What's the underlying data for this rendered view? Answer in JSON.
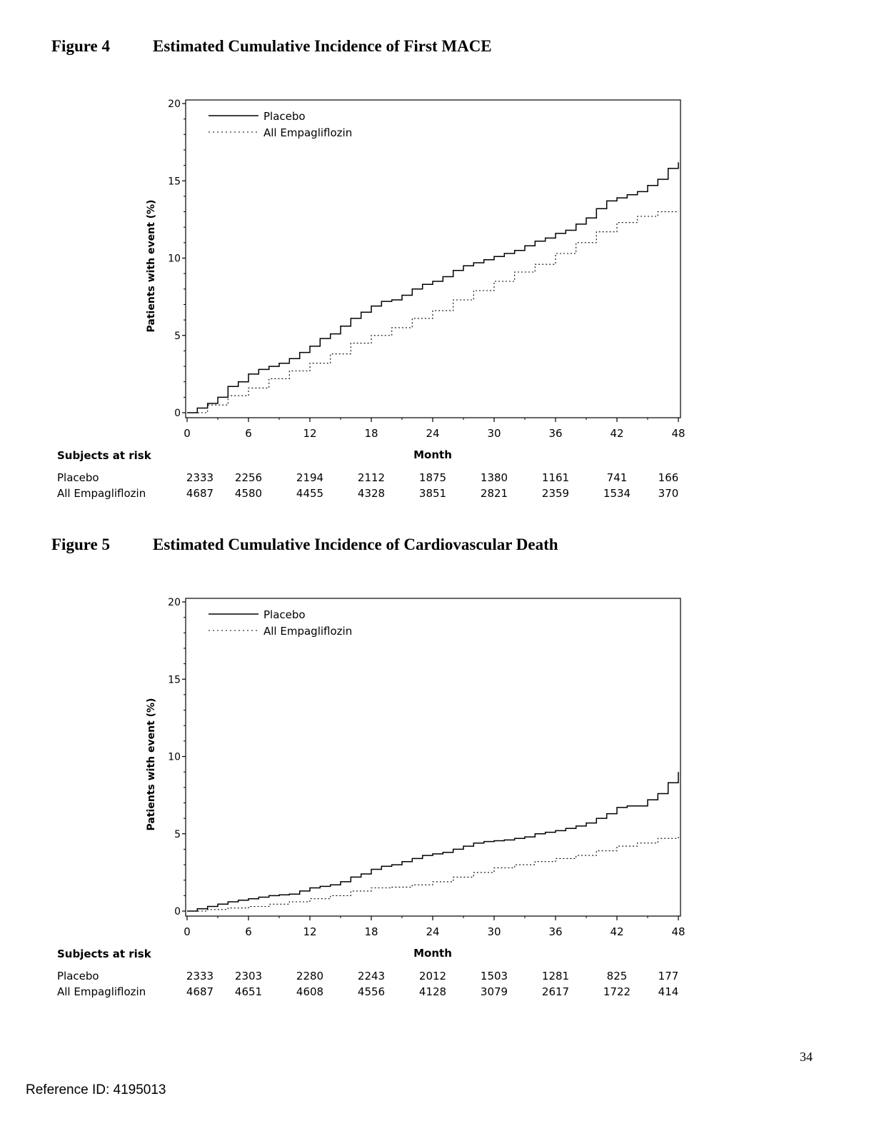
{
  "figures": [
    {
      "label": "Figure 4",
      "title": "Estimated Cumulative Incidence of First MACE"
    },
    {
      "label": "Figure 5",
      "title": "Estimated Cumulative Incidence of Cardiovascular Death"
    }
  ],
  "chart_data": [
    {
      "type": "line",
      "title": "Estimated Cumulative Incidence of First MACE",
      "xlabel": "Month",
      "ylabel": "Patients with event (%)",
      "xlim": [
        0,
        48
      ],
      "ylim": [
        0,
        20
      ],
      "xticks": [
        0,
        6,
        12,
        18,
        24,
        30,
        36,
        42,
        48
      ],
      "yticks": [
        0,
        5,
        10,
        15,
        20
      ],
      "grid": false,
      "legend": "top-left",
      "series": [
        {
          "name": "Placebo",
          "style": "solid",
          "step": true,
          "x": [
            0,
            1,
            2,
            3,
            4,
            5,
            6,
            7,
            8,
            9,
            10,
            11,
            12,
            13,
            14,
            15,
            16,
            17,
            18,
            19,
            20,
            21,
            22,
            23,
            24,
            25,
            26,
            27,
            28,
            29,
            30,
            31,
            32,
            33,
            34,
            35,
            36,
            37,
            38,
            39,
            40,
            41,
            42,
            43,
            44,
            45,
            46,
            47,
            48
          ],
          "y": [
            0,
            0.3,
            0.6,
            1.0,
            1.7,
            2.0,
            2.5,
            2.8,
            3.0,
            3.2,
            3.5,
            3.9,
            4.3,
            4.8,
            5.1,
            5.6,
            6.1,
            6.5,
            6.9,
            7.2,
            7.3,
            7.6,
            8.0,
            8.3,
            8.5,
            8.8,
            9.2,
            9.5,
            9.7,
            9.9,
            10.1,
            10.3,
            10.5,
            10.8,
            11.1,
            11.3,
            11.6,
            11.8,
            12.2,
            12.6,
            13.2,
            13.7,
            13.9,
            14.1,
            14.3,
            14.7,
            15.1,
            15.8,
            16.2
          ]
        },
        {
          "name": "All Empagliflozin",
          "style": "dotted",
          "step": true,
          "x": [
            0,
            2,
            4,
            6,
            8,
            10,
            12,
            14,
            16,
            18,
            20,
            22,
            24,
            26,
            28,
            30,
            32,
            34,
            36,
            38,
            40,
            42,
            44,
            46,
            48
          ],
          "y": [
            0,
            0.5,
            1.1,
            1.6,
            2.2,
            2.7,
            3.2,
            3.8,
            4.5,
            5.0,
            5.5,
            6.1,
            6.6,
            7.3,
            7.9,
            8.5,
            9.1,
            9.6,
            10.3,
            11.0,
            11.7,
            12.3,
            12.7,
            13.0,
            13.0
          ]
        }
      ],
      "at_risk": {
        "header": "Subjects at risk",
        "months": [
          0,
          6,
          12,
          18,
          24,
          30,
          36,
          42,
          48
        ],
        "rows": [
          {
            "label": "Placebo",
            "values": [
              "2333",
              "2256",
              "2194",
              "2112",
              "1875",
              "1380",
              "1161",
              "741",
              "166"
            ]
          },
          {
            "label": "All Empagliflozin",
            "values": [
              "4687",
              "4580",
              "4455",
              "4328",
              "3851",
              "2821",
              "2359",
              "1534",
              "370"
            ]
          }
        ]
      }
    },
    {
      "type": "line",
      "title": "Estimated Cumulative Incidence of Cardiovascular Death",
      "xlabel": "Month",
      "ylabel": "Patients with event (%)",
      "xlim": [
        0,
        48
      ],
      "ylim": [
        0,
        20
      ],
      "xticks": [
        0,
        6,
        12,
        18,
        24,
        30,
        36,
        42,
        48
      ],
      "yticks": [
        0,
        5,
        10,
        15,
        20
      ],
      "grid": false,
      "legend": "top-left",
      "series": [
        {
          "name": "Placebo",
          "style": "solid",
          "step": true,
          "x": [
            0,
            1,
            2,
            3,
            4,
            5,
            6,
            7,
            8,
            9,
            10,
            11,
            12,
            13,
            14,
            15,
            16,
            17,
            18,
            19,
            20,
            21,
            22,
            23,
            24,
            25,
            26,
            27,
            28,
            29,
            30,
            31,
            32,
            33,
            34,
            35,
            36,
            37,
            38,
            39,
            40,
            41,
            42,
            43,
            44,
            45,
            46,
            47,
            48
          ],
          "y": [
            0,
            0.15,
            0.3,
            0.45,
            0.6,
            0.7,
            0.8,
            0.9,
            1.0,
            1.05,
            1.1,
            1.3,
            1.5,
            1.6,
            1.7,
            1.9,
            2.2,
            2.4,
            2.7,
            2.9,
            3.0,
            3.2,
            3.4,
            3.6,
            3.7,
            3.8,
            4.0,
            4.2,
            4.4,
            4.5,
            4.55,
            4.6,
            4.7,
            4.8,
            5.0,
            5.1,
            5.2,
            5.35,
            5.5,
            5.7,
            6.0,
            6.3,
            6.7,
            6.8,
            6.8,
            7.2,
            7.6,
            8.3,
            9.0
          ]
        },
        {
          "name": "All Empagliflozin",
          "style": "dotted",
          "step": true,
          "x": [
            0,
            2,
            4,
            6,
            8,
            10,
            12,
            14,
            16,
            18,
            20,
            22,
            24,
            26,
            28,
            30,
            32,
            34,
            36,
            38,
            40,
            42,
            44,
            46,
            48
          ],
          "y": [
            0,
            0.1,
            0.2,
            0.3,
            0.45,
            0.6,
            0.8,
            1.0,
            1.3,
            1.5,
            1.55,
            1.7,
            1.9,
            2.2,
            2.5,
            2.8,
            3.0,
            3.2,
            3.4,
            3.6,
            3.9,
            4.2,
            4.4,
            4.7,
            4.9
          ]
        }
      ],
      "at_risk": {
        "header": "Subjects at risk",
        "months": [
          0,
          6,
          12,
          18,
          24,
          30,
          36,
          42,
          48
        ],
        "rows": [
          {
            "label": "Placebo",
            "values": [
              "2333",
              "2303",
              "2280",
              "2243",
              "2012",
              "1503",
              "1281",
              "825",
              "177"
            ]
          },
          {
            "label": "All Empagliflozin",
            "values": [
              "4687",
              "4651",
              "4608",
              "4556",
              "4128",
              "3079",
              "2617",
              "1722",
              "414"
            ]
          }
        ]
      }
    }
  ],
  "page_number": "34",
  "reference_id": "Reference ID: 4195013"
}
